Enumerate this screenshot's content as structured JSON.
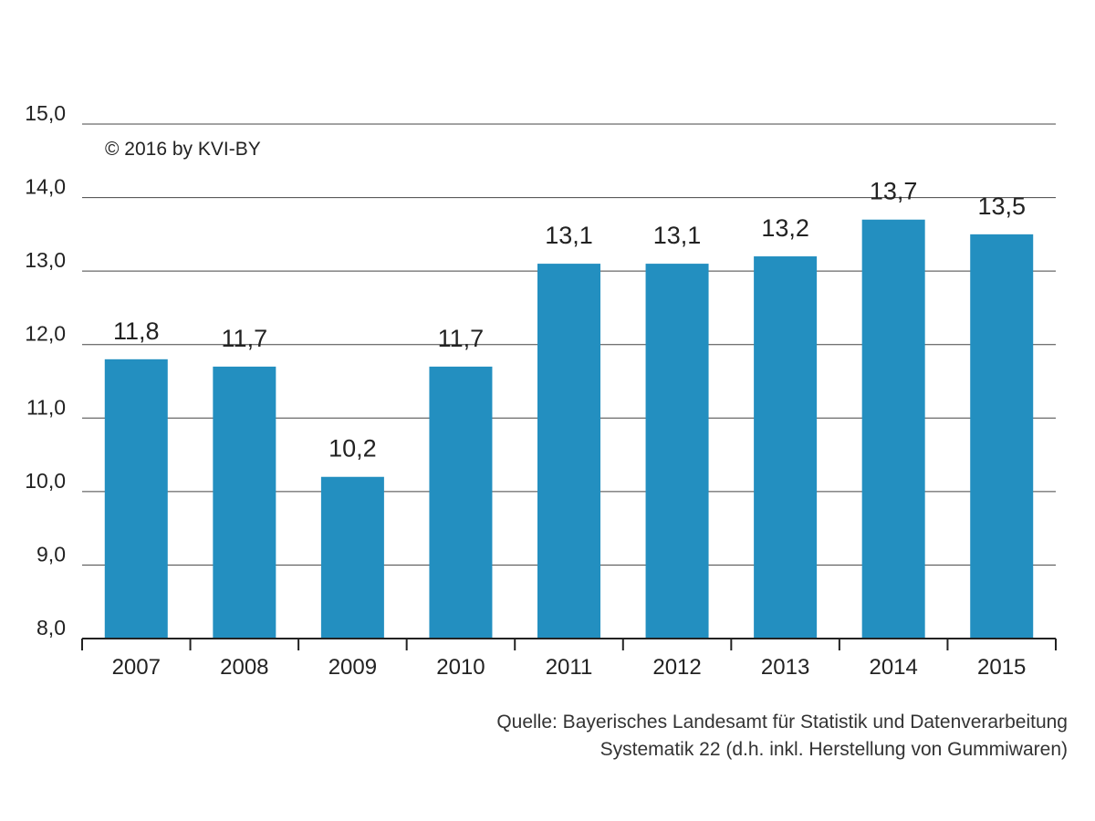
{
  "chart_data": {
    "type": "bar",
    "categories": [
      "2007",
      "2008",
      "2009",
      "2010",
      "2011",
      "2012",
      "2013",
      "2014",
      "2015"
    ],
    "values": [
      11.8,
      11.7,
      10.2,
      11.7,
      13.1,
      13.1,
      13.2,
      13.7,
      13.5
    ],
    "value_labels": [
      "11,8",
      "11,7",
      "10,2",
      "11,7",
      "13,1",
      "13,1",
      "13,2",
      "13,7",
      "13,5"
    ],
    "ylim": [
      8.0,
      15.0
    ],
    "yticks": [
      8.0,
      9.0,
      10.0,
      11.0,
      12.0,
      13.0,
      14.0,
      15.0
    ],
    "ytick_labels": [
      "8,0",
      "9,0",
      "10,0",
      "11,0",
      "12,0",
      "13,0",
      "14,0",
      "15,0"
    ],
    "grid": true,
    "bar_color": "#238fc0",
    "grid_color": "#444444",
    "title": "",
    "xlabel": "",
    "ylabel": ""
  },
  "credit": "© 2016 by KVI-BY",
  "source": {
    "line1": "Quelle:  Bayerisches Landesamt für Statistik und Datenverarbeitung",
    "line2": "Systematik 22 (d.h. inkl. Herstellung von Gummiwaren)"
  }
}
